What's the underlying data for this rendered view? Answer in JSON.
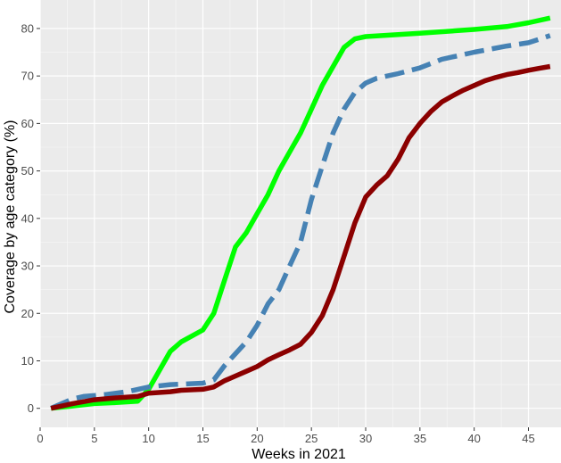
{
  "chart_data": {
    "type": "line",
    "title": "",
    "xlabel": "Weeks in 2021",
    "ylabel": "Coverage by age category (%)",
    "xlim": [
      0,
      48
    ],
    "ylim": [
      -4,
      86
    ],
    "x_ticks": [
      0,
      5,
      10,
      15,
      20,
      25,
      30,
      35,
      40,
      45
    ],
    "y_ticks": [
      0,
      10,
      20,
      30,
      40,
      50,
      60,
      70,
      80
    ],
    "grid": true,
    "legend": "none",
    "background": "#ebebeb",
    "series": [
      {
        "color": "#00ff00",
        "line_style": "solid",
        "points": [
          [
            1,
            0
          ],
          [
            3,
            0.5
          ],
          [
            5,
            1
          ],
          [
            7,
            1.2
          ],
          [
            9,
            1.5
          ],
          [
            10,
            4
          ],
          [
            11,
            8
          ],
          [
            12,
            12
          ],
          [
            13,
            14
          ],
          [
            15,
            16.5
          ],
          [
            16,
            20
          ],
          [
            17,
            27
          ],
          [
            18,
            34
          ],
          [
            19,
            37
          ],
          [
            20,
            41
          ],
          [
            21,
            45
          ],
          [
            22,
            50
          ],
          [
            23,
            54
          ],
          [
            24,
            58
          ],
          [
            25,
            63
          ],
          [
            26,
            68
          ],
          [
            27,
            72
          ],
          [
            28,
            76
          ],
          [
            29,
            77.8
          ],
          [
            30,
            78.3
          ],
          [
            35,
            79
          ],
          [
            40,
            79.8
          ],
          [
            43,
            80.4
          ],
          [
            45,
            81.2
          ],
          [
            47,
            82.2
          ]
        ]
      },
      {
        "color": "#4682b4",
        "line_style": "dashed",
        "points": [
          [
            1,
            0
          ],
          [
            3,
            2
          ],
          [
            4,
            2.5
          ],
          [
            6,
            2.9
          ],
          [
            8,
            3.5
          ],
          [
            10,
            4.5
          ],
          [
            12,
            5
          ],
          [
            15,
            5.3
          ],
          [
            16,
            6
          ],
          [
            17,
            9
          ],
          [
            18,
            11.5
          ],
          [
            19,
            14
          ],
          [
            20,
            17.5
          ],
          [
            21,
            22
          ],
          [
            22,
            25
          ],
          [
            23,
            30
          ],
          [
            24,
            35
          ],
          [
            25,
            44
          ],
          [
            26,
            51
          ],
          [
            27,
            58
          ],
          [
            28,
            63
          ],
          [
            29,
            66.5
          ],
          [
            30,
            68.5
          ],
          [
            31,
            69.5
          ],
          [
            33,
            70.5
          ],
          [
            35,
            71.7
          ],
          [
            37,
            73.5
          ],
          [
            40,
            75
          ],
          [
            43,
            76.3
          ],
          [
            45,
            77
          ],
          [
            47,
            78.5
          ]
        ]
      },
      {
        "color": "#8b0000",
        "line_style": "solid",
        "points": [
          [
            1,
            0
          ],
          [
            3,
            1
          ],
          [
            5,
            1.8
          ],
          [
            7,
            2.2
          ],
          [
            9,
            2.5
          ],
          [
            10,
            3.2
          ],
          [
            12,
            3.5
          ],
          [
            13,
            3.8
          ],
          [
            15,
            4
          ],
          [
            16,
            4.5
          ],
          [
            17,
            5.8
          ],
          [
            18,
            6.8
          ],
          [
            19,
            7.8
          ],
          [
            20,
            8.8
          ],
          [
            21,
            10.2
          ],
          [
            22,
            11.3
          ],
          [
            23,
            12.3
          ],
          [
            24,
            13.5
          ],
          [
            25,
            16
          ],
          [
            26,
            19.5
          ],
          [
            27,
            25
          ],
          [
            28,
            32
          ],
          [
            29,
            39
          ],
          [
            30,
            44.5
          ],
          [
            31,
            47
          ],
          [
            32,
            49
          ],
          [
            33,
            52.5
          ],
          [
            34,
            57
          ],
          [
            35,
            60
          ],
          [
            36,
            62.5
          ],
          [
            37,
            64.5
          ],
          [
            38,
            65.8
          ],
          [
            39,
            67
          ],
          [
            40,
            68
          ],
          [
            41,
            69
          ],
          [
            42,
            69.7
          ],
          [
            43,
            70.3
          ],
          [
            44,
            70.7
          ],
          [
            45,
            71.2
          ],
          [
            46,
            71.6
          ],
          [
            47,
            72
          ]
        ]
      }
    ]
  }
}
